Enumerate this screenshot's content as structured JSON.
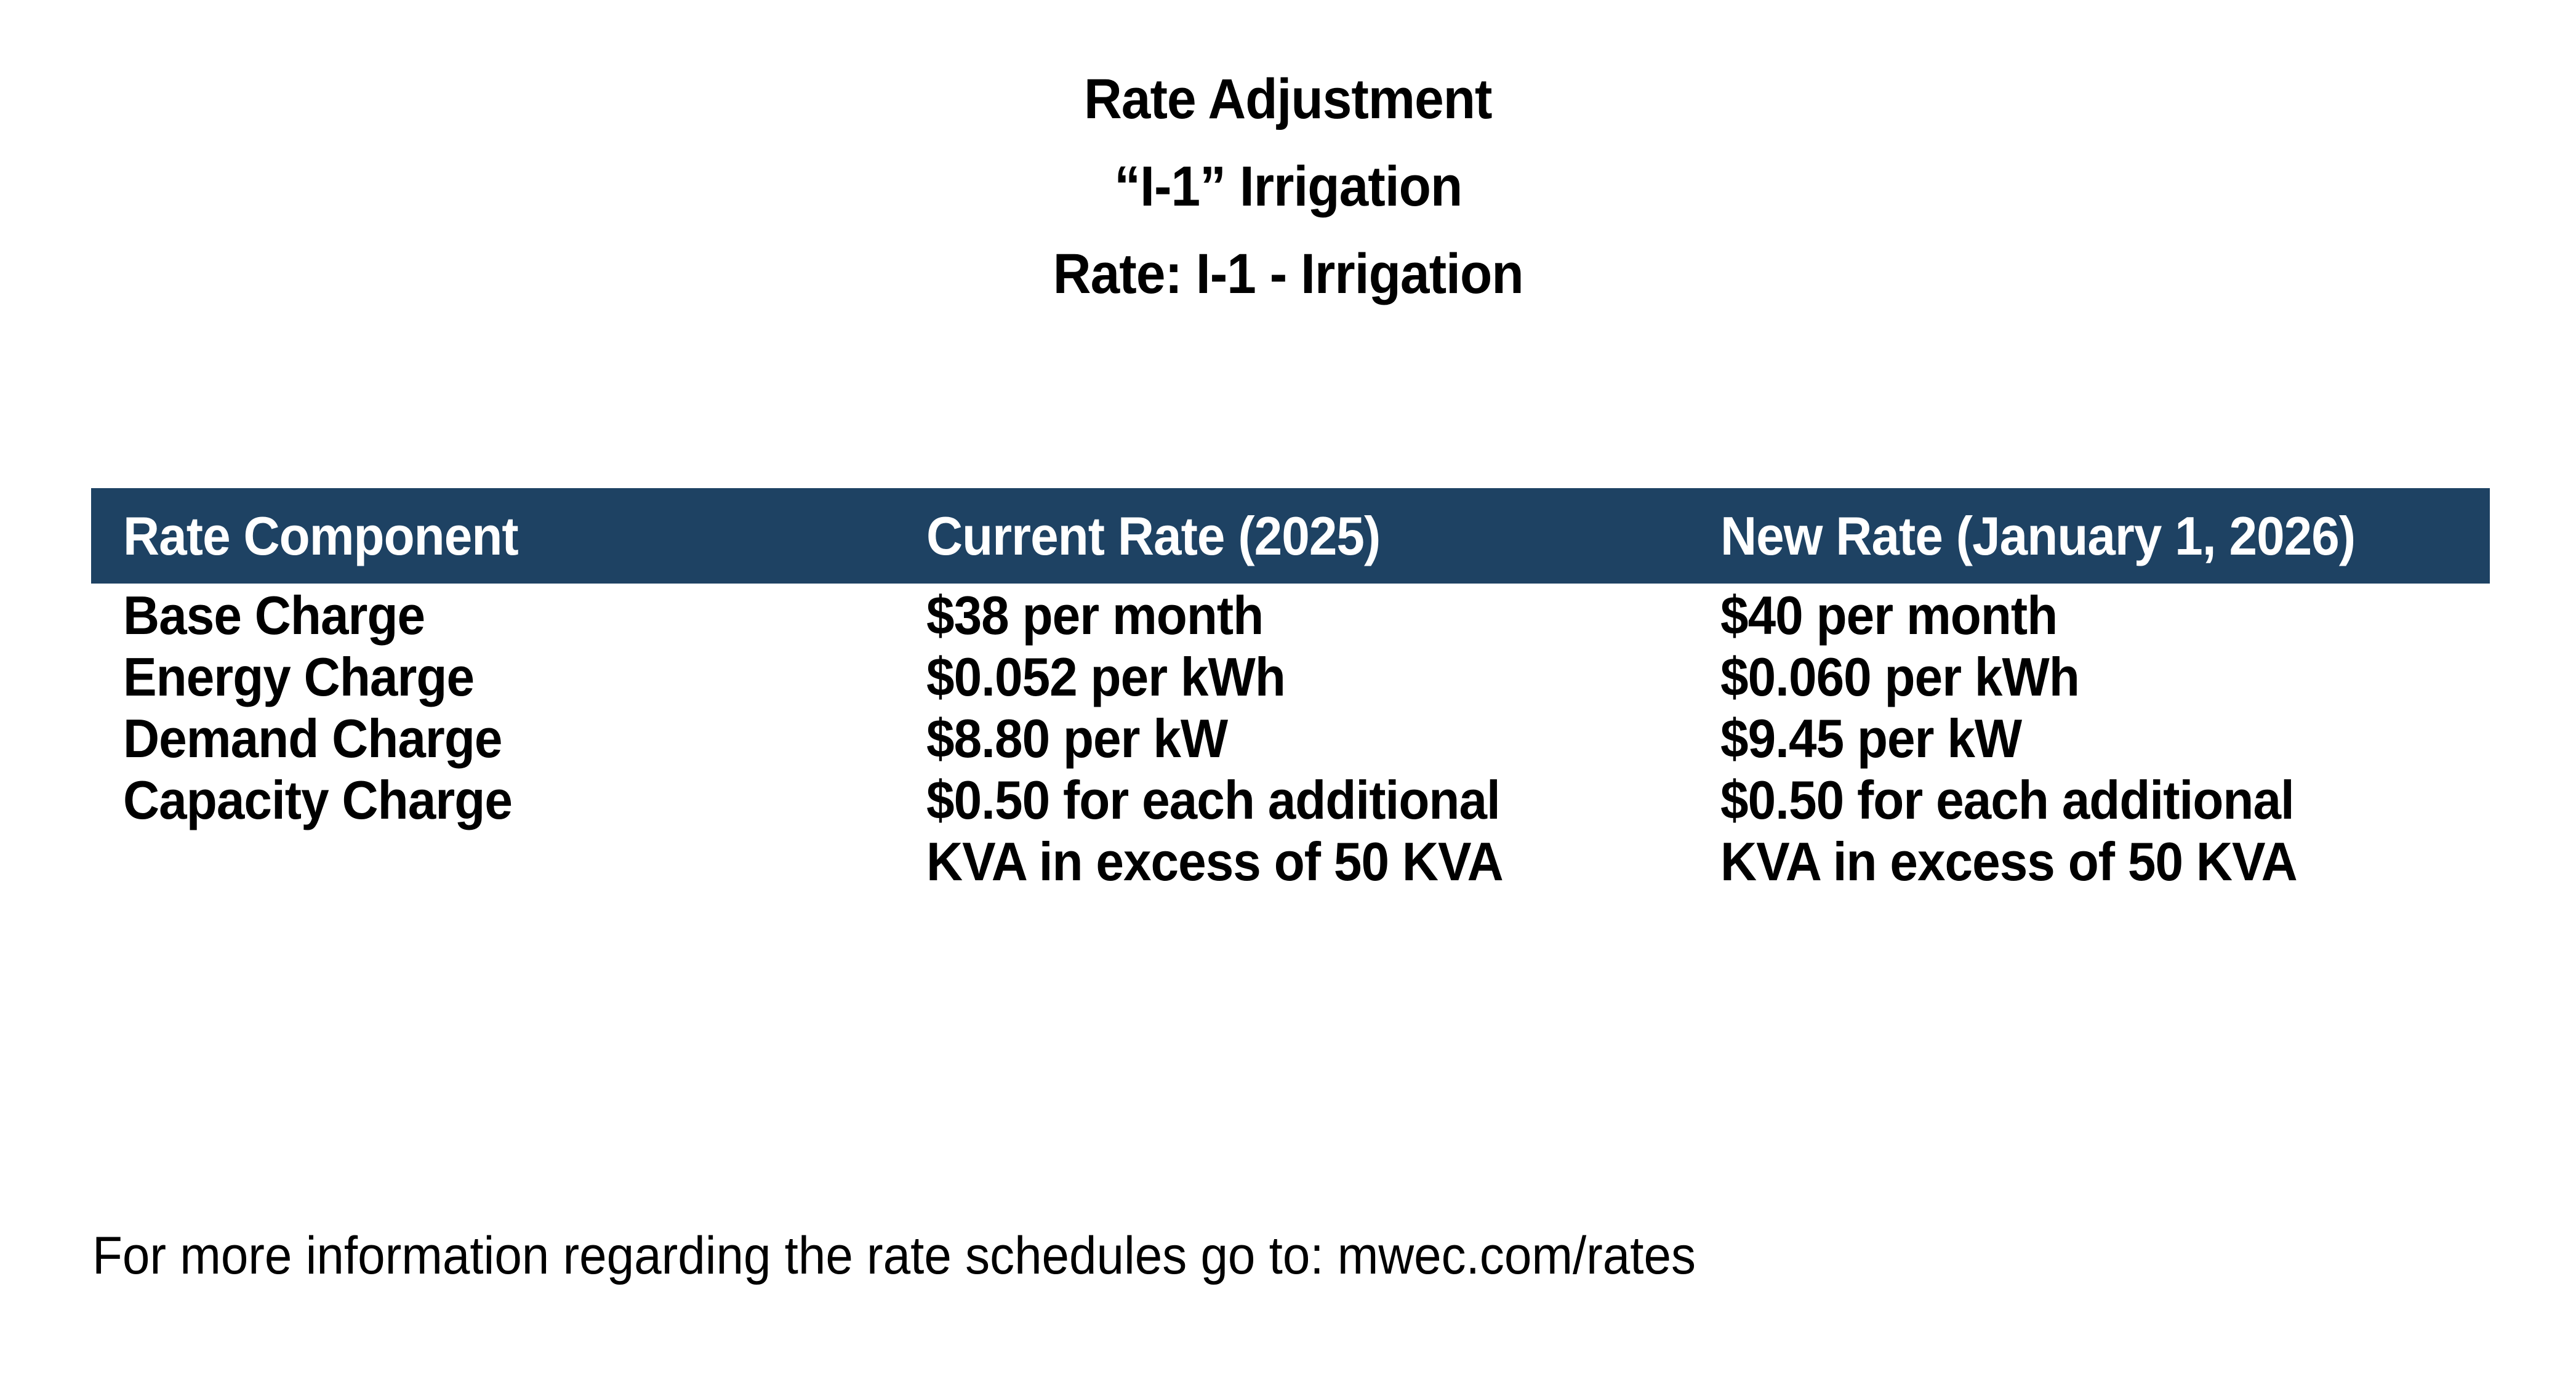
{
  "page": {
    "background": "#ffffff",
    "header_bar_color": "#1E4263",
    "header_text_color": "#ffffff",
    "body_text_color": "#000000"
  },
  "title": {
    "line1": "Rate Adjustment",
    "line2": "“I-1” Irrigation",
    "line3": "Rate: I-1 - Irrigation"
  },
  "table": {
    "headers": [
      "Rate Component",
      "Current Rate (2025)",
      "New Rate (January 1, 2026)"
    ],
    "rows": [
      {
        "component": "Base Charge",
        "current": [
          "$38 per month"
        ],
        "new": [
          "$40 per month"
        ]
      },
      {
        "component": "Energy Charge",
        "current": [
          "$0.052 per kWh"
        ],
        "new": [
          "$0.060 per kWh"
        ]
      },
      {
        "component": "Demand Charge",
        "current": [
          "$8.80 per kW"
        ],
        "new": [
          "$9.45 per kW"
        ]
      },
      {
        "component": "Capacity Charge",
        "current": [
          "$0.50 for each additional",
          "KVA in excess of 50 KVA"
        ],
        "new": [
          "$0.50 for each additional",
          "KVA in excess of 50 KVA"
        ]
      }
    ]
  },
  "footer": {
    "text": "For more information regarding the rate schedules go to: mwec.com/rates"
  }
}
